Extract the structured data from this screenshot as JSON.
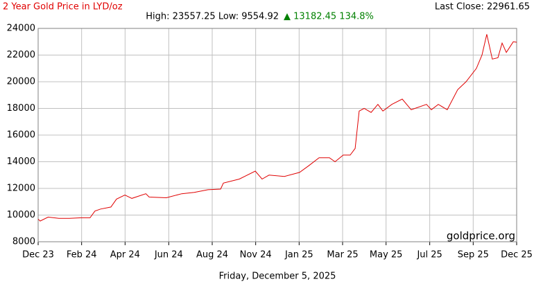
{
  "chart_data": {
    "type": "line",
    "title": "2 Year Gold Price in LYD/oz",
    "stats": "High: 23557.25 Low: 9554.92",
    "change": "▲ 13182.45 134.8%",
    "last_close": "Last Close: 22961.65",
    "watermark": "goldprice.org",
    "date_label": "Friday, December 5, 2025",
    "x": [
      0,
      0.1,
      0.5,
      1.04,
      1.57,
      2.16,
      2.6,
      2.85,
      3.13,
      3.65,
      3.93,
      4.35,
      4.7,
      5.4,
      5.57,
      6.43,
      7.2,
      7.83,
      8.52,
      9.15,
      9.29,
      10.09,
      10.89,
      11.23,
      11.58,
      12.35,
      13.11,
      13.57,
      14.09,
      14.61,
      14.89,
      15.3,
      15.65,
      15.9,
      16.1,
      16.35,
      16.7,
      17.04,
      17.29,
      17.74,
      18.26,
      18.71,
      19.48,
      19.72,
      20.07,
      20.52,
      21.04,
      21.46,
      21.98,
      22.26,
      22.5,
      22.78,
      23.06,
      23.27,
      23.48,
      23.83,
      24
    ],
    "series": [
      {
        "name": "LYD/oz",
        "color": "#e00000",
        "values": [
          9700,
          9554.92,
          9850,
          9750,
          9750,
          9800,
          9800,
          10300,
          10450,
          10600,
          11200,
          11500,
          11250,
          11600,
          11350,
          11300,
          11600,
          11700,
          11900,
          11950,
          12400,
          12700,
          13300,
          12700,
          13000,
          12900,
          13200,
          13700,
          14300,
          14300,
          14000,
          14500,
          14500,
          15000,
          17800,
          18000,
          17700,
          18300,
          17800,
          18300,
          18700,
          17900,
          18300,
          17900,
          18300,
          17900,
          19400,
          20000,
          21000,
          22000,
          23557.25,
          21700,
          21800,
          22900,
          22200,
          23000,
          22961.65
        ]
      }
    ],
    "xlim": [
      0,
      24
    ],
    "xticks": [
      {
        "value": 0,
        "label": "Dec 23"
      },
      {
        "value": 2.18,
        "label": "Feb 24"
      },
      {
        "value": 4.36,
        "label": "Apr 24"
      },
      {
        "value": 6.55,
        "label": "Jun 24"
      },
      {
        "value": 8.73,
        "label": "Aug 24"
      },
      {
        "value": 10.91,
        "label": "Nov 24"
      },
      {
        "value": 13.09,
        "label": "Jan 25"
      },
      {
        "value": 15.27,
        "label": "Mar 25"
      },
      {
        "value": 17.45,
        "label": "May 25"
      },
      {
        "value": 19.64,
        "label": "Jul 25"
      },
      {
        "value": 21.82,
        "label": "Sep 25"
      },
      {
        "value": 24,
        "label": "Dec 25"
      }
    ],
    "ylim": [
      8000,
      24000
    ],
    "yticks": [
      8000,
      10000,
      12000,
      14000,
      16000,
      18000,
      20000,
      22000,
      24000
    ],
    "grid": true
  }
}
